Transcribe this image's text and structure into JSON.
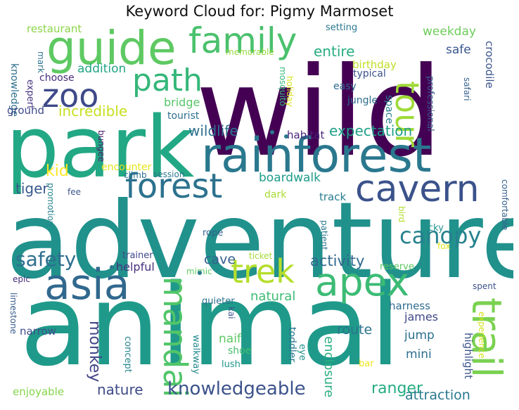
{
  "title": "Keyword Cloud for: Pigmy Marmoset",
  "words": [
    {
      "text": "wild",
      "color": "#440154"
    },
    {
      "text": "adventure",
      "color": "#21918c"
    },
    {
      "text": "animal",
      "color": "#1f9a8a"
    },
    {
      "text": "park",
      "color": "#22a884"
    },
    {
      "text": "rainforest",
      "color": "#2a788e"
    },
    {
      "text": "guide",
      "color": "#5ec962"
    },
    {
      "text": "asia",
      "color": "#31688e"
    },
    {
      "text": "apex",
      "color": "#3cbb75"
    },
    {
      "text": "cavern",
      "color": "#3b528b"
    },
    {
      "text": "family",
      "color": "#4ac16d"
    },
    {
      "text": "trail",
      "color": "#7ad151"
    },
    {
      "text": "forest",
      "color": "#2c728e"
    },
    {
      "text": "zoo",
      "color": "#3e4989"
    },
    {
      "text": "trek",
      "color": "#b5de2b"
    },
    {
      "text": "tour",
      "color": "#a0da39"
    },
    {
      "text": "path",
      "color": "#35b779"
    },
    {
      "text": "mandai",
      "color": "#52c569"
    },
    {
      "text": "canopy",
      "color": "#26828e"
    },
    {
      "text": "safety",
      "color": "#2e6e8e"
    },
    {
      "text": "knowledgeable",
      "color": "#3b528b"
    },
    {
      "text": "wildlife",
      "color": "#2d708e"
    },
    {
      "text": "expectation",
      "color": "#1fa088"
    },
    {
      "text": "activity",
      "color": "#31688e"
    },
    {
      "text": "monkey",
      "color": "#414487"
    },
    {
      "text": "tiger",
      "color": "#38598c"
    },
    {
      "text": "incredible",
      "color": "#c8e020"
    },
    {
      "text": "entire",
      "color": "#27ad81"
    },
    {
      "text": "ranger",
      "color": "#25ac82"
    },
    {
      "text": "nature",
      "color": "#3e4a89"
    },
    {
      "text": "kid",
      "color": "#fde725"
    },
    {
      "text": "route",
      "color": "#2b748e"
    },
    {
      "text": "enclosure",
      "color": "#29af7f"
    },
    {
      "text": "natural",
      "color": "#3dbc74"
    },
    {
      "text": "attraction",
      "color": "#2a788e"
    },
    {
      "text": "boardwalk",
      "color": "#1e9c89"
    },
    {
      "text": "cave",
      "color": "#34608d"
    },
    {
      "text": "addition",
      "color": "#20a486"
    },
    {
      "text": "weekday",
      "color": "#6ccd5a"
    },
    {
      "text": "safe",
      "color": "#39568c"
    },
    {
      "text": "birthday",
      "color": "#c0df25"
    },
    {
      "text": "restaurant",
      "color": "#8bd646"
    },
    {
      "text": "bridge",
      "color": "#56c667"
    },
    {
      "text": "jump",
      "color": "#2c718e"
    },
    {
      "text": "mini",
      "color": "#2d708e"
    },
    {
      "text": "james",
      "color": "#3f4889"
    },
    {
      "text": "harness",
      "color": "#2f6c8e"
    },
    {
      "text": "helpful",
      "color": "#46327e"
    },
    {
      "text": "highlight",
      "color": "#3b528b"
    },
    {
      "text": "crocodile",
      "color": "#3a548c"
    },
    {
      "text": "enjoyable",
      "color": "#84d44b"
    },
    {
      "text": "narrow",
      "color": "#3e4c8a"
    },
    {
      "text": "habitat",
      "color": "#482576"
    },
    {
      "text": "jungle",
      "color": "#2e6d8e"
    },
    {
      "text": "knowledge",
      "color": "#2d708e"
    },
    {
      "text": "ground",
      "color": "#3e4a89"
    },
    {
      "text": "encounter",
      "color": "#e5e419"
    },
    {
      "text": "tourist",
      "color": "#2e6f8e"
    },
    {
      "text": "track",
      "color": "#287c8e"
    },
    {
      "text": "dark",
      "color": "#a8db34"
    },
    {
      "text": "typical",
      "color": "#3b528b"
    },
    {
      "text": "easy",
      "color": "#306a8e"
    },
    {
      "text": "space",
      "color": "#277f8e"
    },
    {
      "text": "choose",
      "color": "#472c7a"
    },
    {
      "text": "expert",
      "color": "#453581"
    },
    {
      "text": "mark",
      "color": "#2c718e"
    },
    {
      "text": "setting",
      "color": "#2a778e"
    },
    {
      "text": "memorable",
      "color": "#95d840"
    },
    {
      "text": "professional",
      "color": "#38598c"
    },
    {
      "text": "safari",
      "color": "#34618d"
    },
    {
      "text": "mosquito",
      "color": "#35b779"
    },
    {
      "text": "holiday",
      "color": "#d8e219"
    },
    {
      "text": "bungee",
      "color": "#48186a"
    },
    {
      "text": "climb",
      "color": "#2d708e"
    },
    {
      "text": "session",
      "color": "#2a788e"
    },
    {
      "text": "fee",
      "color": "#3a538b"
    },
    {
      "text": "rope",
      "color": "#33638d"
    },
    {
      "text": "patient",
      "color": "#2a778e"
    },
    {
      "text": "bird",
      "color": "#b2dd2d"
    },
    {
      "text": "lucky",
      "color": "#20928c"
    },
    {
      "text": "comfortable",
      "color": "#355f8d"
    },
    {
      "text": "fox",
      "color": "#e2e418"
    },
    {
      "text": "reserve",
      "color": "#5ec962"
    },
    {
      "text": "ticket",
      "color": "#a5db36"
    },
    {
      "text": "mimic",
      "color": "#5ec962"
    },
    {
      "text": "trainer",
      "color": "#3e4989"
    },
    {
      "text": "promotion",
      "color": "#26828e"
    },
    {
      "text": "epic",
      "color": "#472d7b"
    },
    {
      "text": "limestone",
      "color": "#375b8d"
    },
    {
      "text": "quieter",
      "color": "#2d718e"
    },
    {
      "text": "kai",
      "color": "#39568c"
    },
    {
      "text": "spent",
      "color": "#3b528b"
    },
    {
      "text": "experience",
      "color": "#d2e21b"
    },
    {
      "text": "naif",
      "color": "#5ec962"
    },
    {
      "text": "shoe",
      "color": "#44bf70"
    },
    {
      "text": "lush",
      "color": "#1f958b"
    },
    {
      "text": "concept",
      "color": "#25848e"
    },
    {
      "text": "walkway",
      "color": "#23898e"
    },
    {
      "text": "toddler",
      "color": "#2b758e"
    },
    {
      "text": "eye",
      "color": "#21918c"
    },
    {
      "text": "bar",
      "color": "#f1e51d"
    }
  ]
}
